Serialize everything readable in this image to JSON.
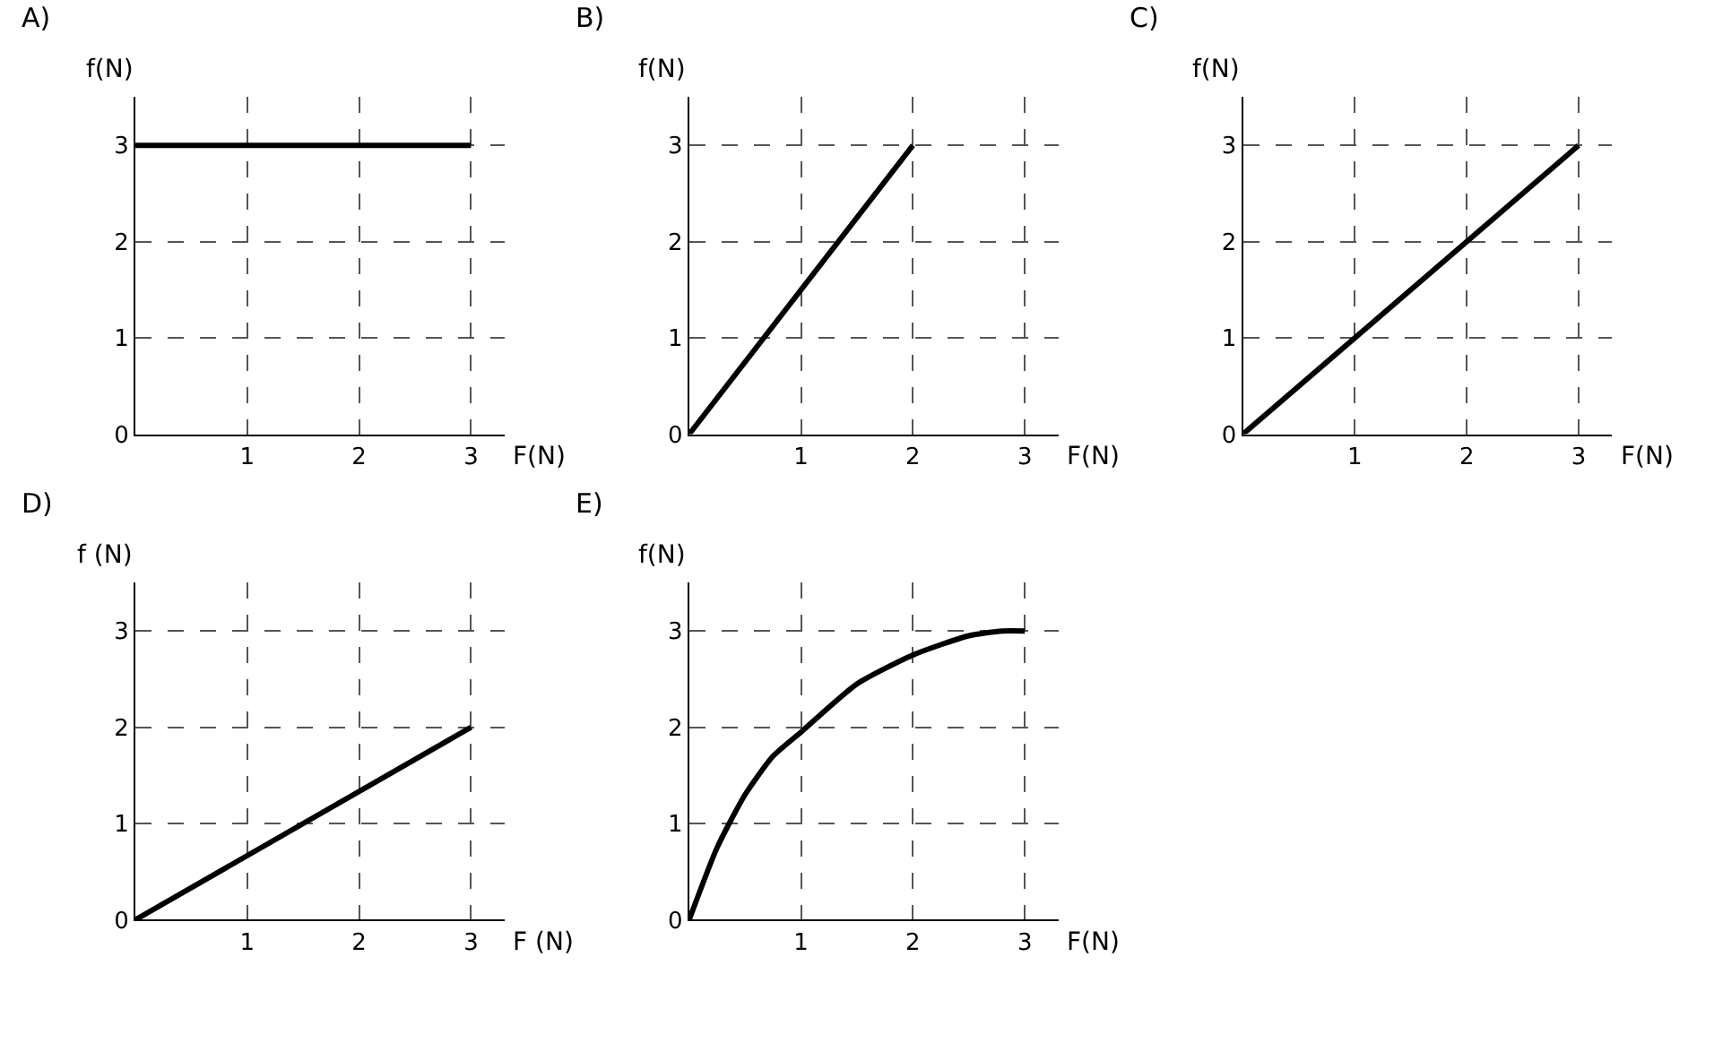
{
  "chart_data": [
    {
      "type": "line",
      "title": "A)",
      "xlabel": "F(N)",
      "ylabel": "f(N)",
      "x": [
        0,
        3
      ],
      "series": [
        {
          "color": "#000000",
          "values": [
            3,
            3
          ]
        }
      ],
      "xlim": [
        0,
        3.3
      ],
      "ylim": [
        0,
        3.5
      ],
      "xticks": [
        1,
        2,
        3
      ],
      "yticks": [
        0,
        1,
        2,
        3
      ],
      "grid": true,
      "marker": "none",
      "line_style": "solid"
    },
    {
      "type": "line",
      "title": "B)",
      "xlabel": "F(N)",
      "ylabel": "f(N)",
      "x": [
        0,
        2
      ],
      "series": [
        {
          "color": "#000000",
          "values": [
            0,
            3
          ]
        }
      ],
      "xlim": [
        0,
        3.3
      ],
      "ylim": [
        0,
        3.5
      ],
      "xticks": [
        1,
        2,
        3
      ],
      "yticks": [
        0,
        1,
        2,
        3
      ],
      "grid": true,
      "marker": "none",
      "line_style": "solid"
    },
    {
      "type": "line",
      "title": "C)",
      "xlabel": "F(N)",
      "ylabel": "f(N)",
      "x": [
        0,
        3
      ],
      "series": [
        {
          "color": "#000000",
          "values": [
            0,
            3
          ]
        }
      ],
      "xlim": [
        0,
        3.3
      ],
      "ylim": [
        0,
        3.5
      ],
      "xticks": [
        1,
        2,
        3
      ],
      "yticks": [
        0,
        1,
        2,
        3
      ],
      "grid": true,
      "marker": "none",
      "line_style": "solid"
    },
    {
      "type": "line",
      "title": "D)",
      "xlabel": "F (N)",
      "ylabel": "f (N)",
      "x": [
        0,
        3
      ],
      "series": [
        {
          "color": "#000000",
          "values": [
            0,
            2
          ]
        }
      ],
      "xlim": [
        0,
        3.3
      ],
      "ylim": [
        0,
        3.5
      ],
      "xticks": [
        1,
        2,
        3
      ],
      "yticks": [
        0,
        1,
        2,
        3
      ],
      "grid": true,
      "marker": "none",
      "line_style": "solid"
    },
    {
      "type": "line",
      "title": "E)",
      "xlabel": "F(N)",
      "ylabel": "f(N)",
      "x": [
        0,
        0.25,
        0.5,
        0.75,
        1,
        1.5,
        2,
        2.5,
        2.8,
        3
      ],
      "series": [
        {
          "color": "#000000",
          "values": [
            0,
            0.75,
            1.3,
            1.7,
            1.95,
            2.45,
            2.75,
            2.95,
            3,
            3
          ]
        }
      ],
      "xlim": [
        0,
        3.3
      ],
      "ylim": [
        0,
        3.5
      ],
      "xticks": [
        1,
        2,
        3
      ],
      "yticks": [
        0,
        1,
        2,
        3
      ],
      "grid": true,
      "marker": "none",
      "line_style": "solid"
    }
  ]
}
